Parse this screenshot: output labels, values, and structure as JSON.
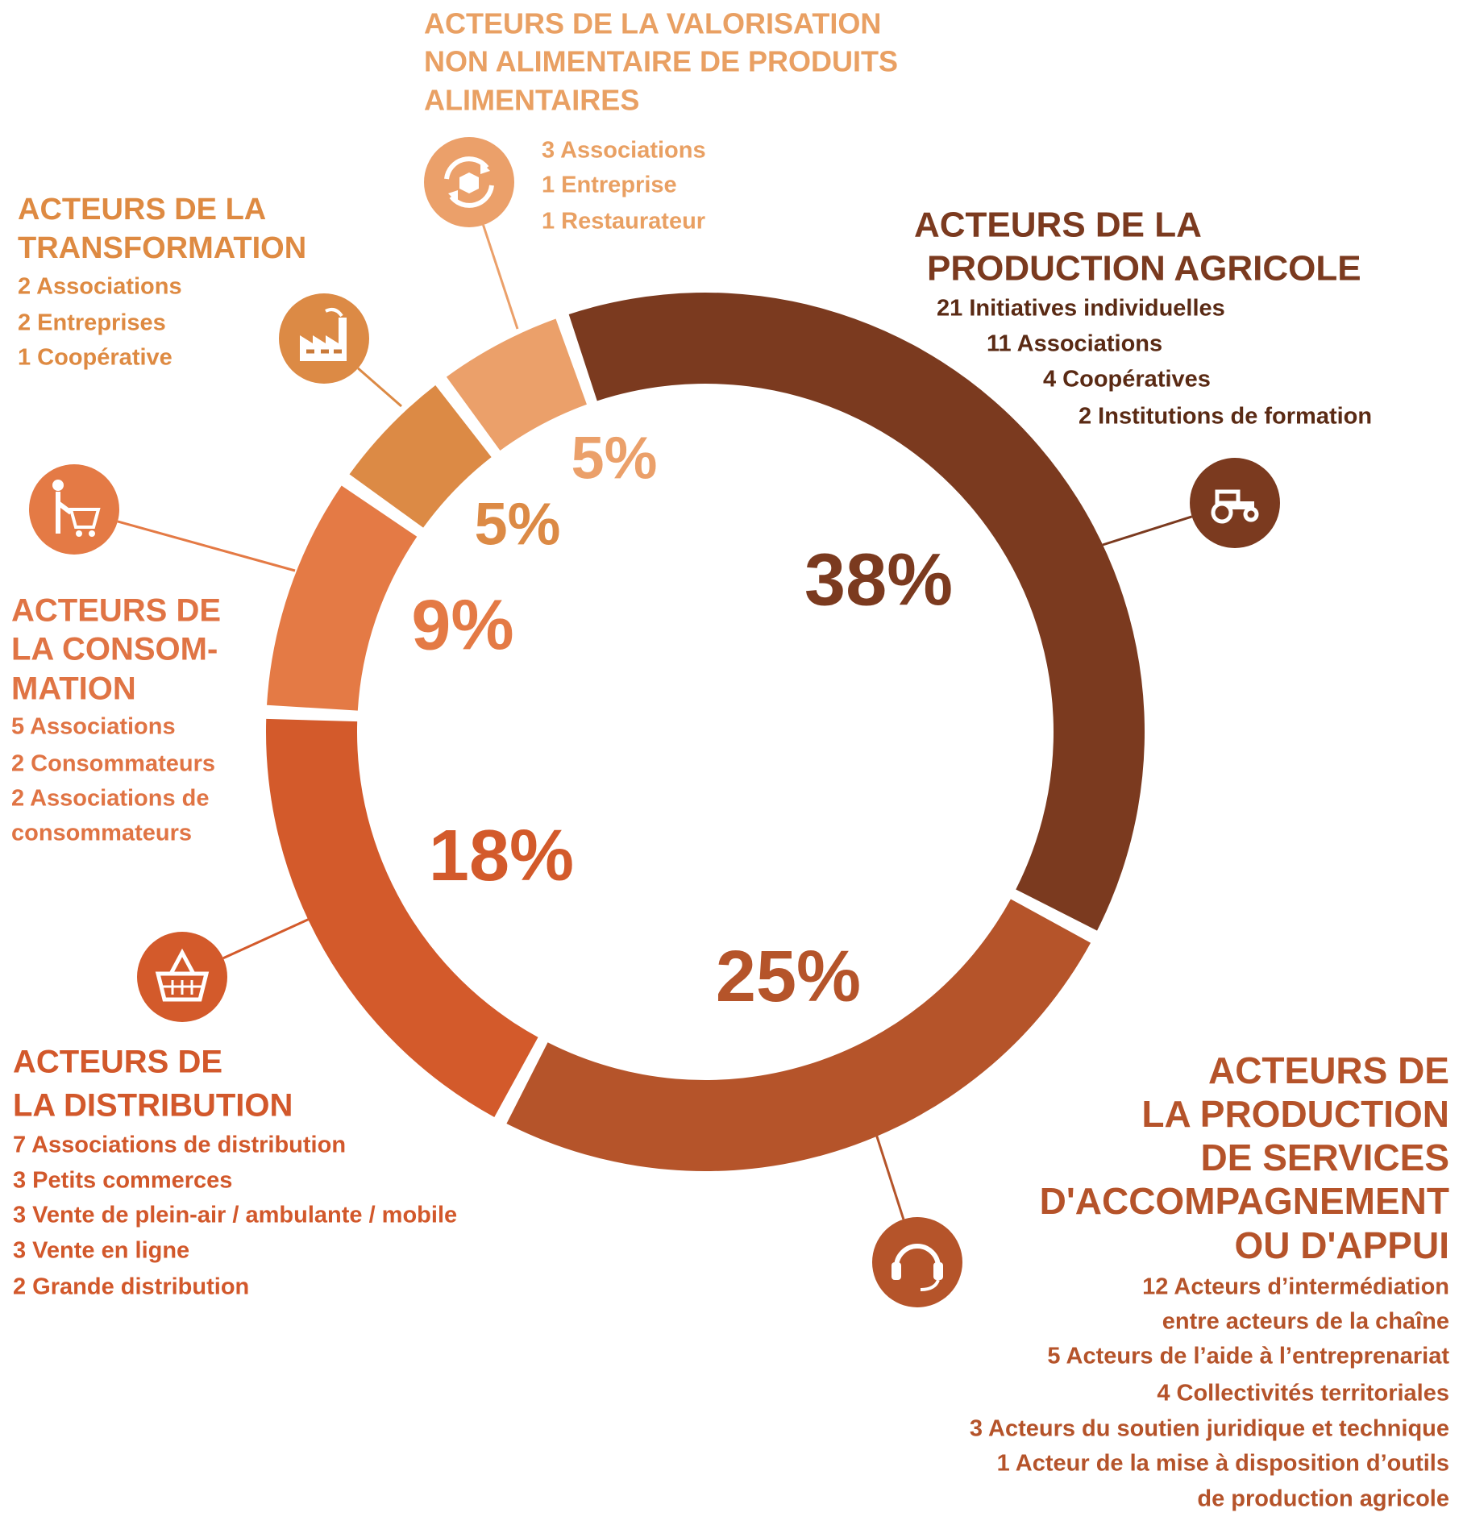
{
  "chart_data": {
    "type": "pie",
    "donut": true,
    "values": [
      38,
      25,
      18,
      9,
      5,
      5
    ],
    "value_labels": [
      "38%",
      "25%",
      "18%",
      "9%",
      "5%",
      "5%"
    ],
    "colors": [
      "#7b3a1f",
      "#b5542a",
      "#d35a2b",
      "#e47a45",
      "#dc8a45",
      "#eba06a"
    ],
    "groups": [
      {
        "title": [
          "ACTEURS DE LA",
          "PRODUCTION AGRICOLE"
        ],
        "items": [
          "21 Initiatives individuelles",
          "11 Associations",
          "4 Coopératives",
          "2 Institutions de formation"
        ]
      },
      {
        "title": [
          "ACTEURS DE",
          "LA PRODUCTION",
          "DE SERVICES",
          "D'ACCOMPAGNEMENT",
          "OU D'APPUI"
        ],
        "items": [
          "12 Acteurs d’intermédiation",
          "entre acteurs de la chaîne",
          "5 Acteurs de l’aide à l’entreprenariat",
          "4 Collectivités territoriales",
          "3 Acteurs du soutien juridique et technique",
          "1 Acteur de la mise à disposition d’outils",
          "de production agricole"
        ]
      },
      {
        "title": [
          "ACTEURS DE",
          "LA DISTRIBUTION"
        ],
        "items": [
          "7 Associations de distribution",
          "3 Petits commerces",
          "3 Vente de plein-air / ambulante / mobile",
          "3 Vente en ligne",
          "2 Grande distribution"
        ]
      },
      {
        "title": [
          "ACTEURS DE",
          "LA CONSOM-",
          "MATION"
        ],
        "items": [
          "5 Associations",
          "2 Consommateurs",
          "2 Associations de",
          "consommateurs"
        ]
      },
      {
        "title": [
          "ACTEURS DE LA",
          "TRANSFORMATION"
        ],
        "items": [
          "2 Associations",
          "2 Entreprises",
          "1 Coopérative"
        ]
      },
      {
        "title": [
          "ACTEURS DE LA VALORISATION",
          "NON ALIMENTAIRE DE PRODUITS",
          "ALIMENTAIRES"
        ],
        "items": [
          "3 Associations",
          "1 Entreprise",
          "1 Restaurateur"
        ]
      }
    ]
  }
}
